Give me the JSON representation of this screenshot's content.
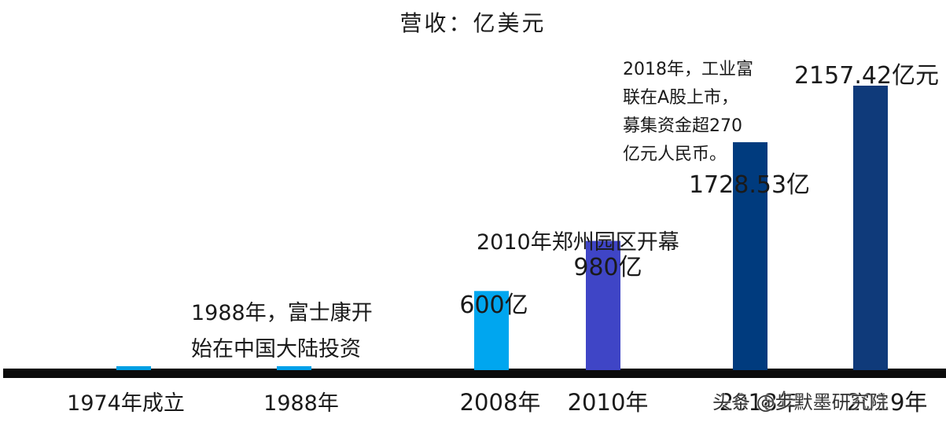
{
  "chart_data": {
    "type": "bar",
    "title": "营收：亿美元",
    "categories": [
      "1974年成立",
      "1988年",
      "2008年",
      "2010年",
      "2018年",
      "2019年"
    ],
    "values": [
      2,
      5,
      600,
      980,
      1728.53,
      2157.42
    ],
    "data_labels": [
      "",
      "",
      "600亿",
      "980亿",
      "1728.53亿",
      "2157.42亿元"
    ],
    "colors": [
      "#009fe3",
      "#00a0e9",
      "#00a6ef",
      "#3f45c6",
      "#003b7e",
      "#0f3a7a"
    ],
    "annotations": [
      "1988年，富士康开",
      "始在中国大陆投资",
      "2010年郑州园区开幕",
      "2018年，工业富",
      "联在A股上市，",
      "募集资金超270",
      "亿元人民币。"
    ],
    "ylim": [
      0,
      2400
    ],
    "grid": false,
    "legend": "none"
  },
  "watermark": "头条 @步默墨研究院"
}
